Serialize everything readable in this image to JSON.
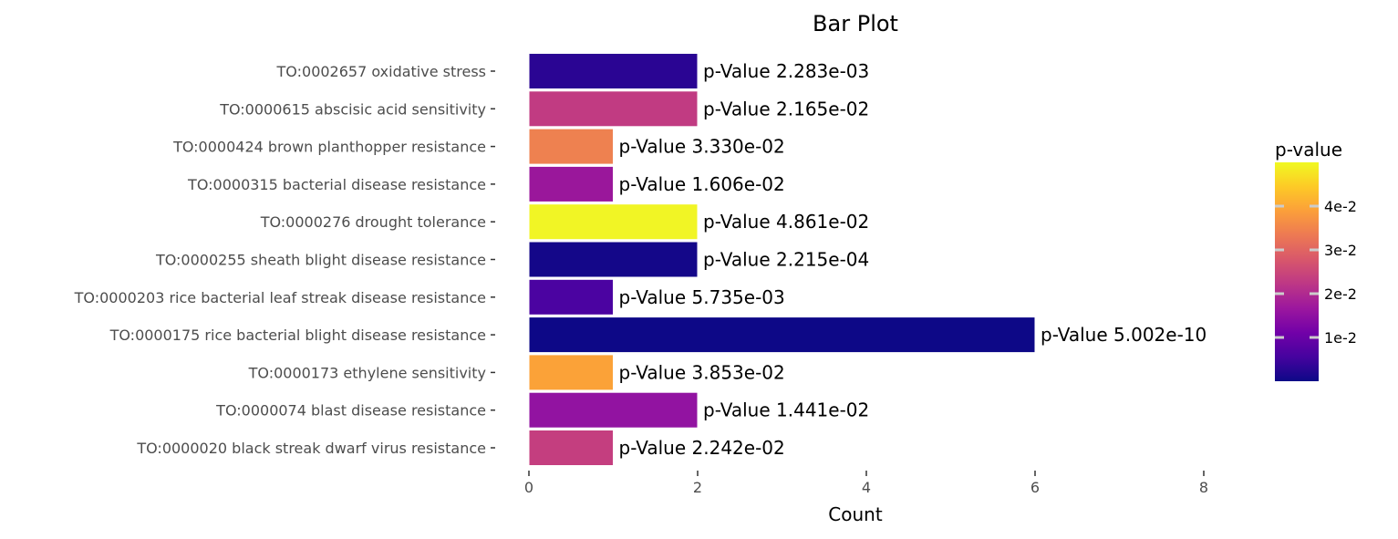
{
  "chart_data": {
    "type": "bar",
    "orientation": "horizontal",
    "title": "Bar Plot",
    "xlabel": "Count",
    "ylabel": "",
    "xlim": [
      0,
      9
    ],
    "x_ticks": [
      0,
      2,
      4,
      6,
      8
    ],
    "grid": false,
    "categories": [
      "TO:0002657 oxidative stress",
      "TO:0000615 abscisic acid sensitivity",
      "TO:0000424 brown planthopper resistance",
      "TO:0000315 bacterial disease resistance",
      "TO:0000276 drought tolerance",
      "TO:0000255 sheath blight disease resistance",
      "TO:0000203 rice bacterial leaf streak disease resistance",
      "TO:0000175 rice bacterial blight disease resistance",
      "TO:0000173 ethylene sensitivity",
      "TO:0000074 blast disease resistance",
      "TO:0000020 black streak dwarf virus resistance"
    ],
    "values": [
      2,
      2,
      1,
      1,
      2,
      2,
      1,
      6,
      1,
      2,
      1
    ],
    "p_values": [
      0.002283,
      0.02165,
      0.0333,
      0.01606,
      0.04861,
      0.0002215,
      0.005735,
      5.002e-10,
      0.03853,
      0.01441,
      0.02242
    ],
    "bar_labels": [
      "p-Value 2.283e-03",
      "p-Value 2.165e-02",
      "p-Value 3.330e-02",
      "p-Value 1.606e-02",
      "p-Value 4.861e-02",
      "p-Value 2.215e-04",
      "p-Value 5.735e-03",
      "p-Value 5.002e-10",
      "p-Value 3.853e-02",
      "p-Value 1.441e-02",
      "p-Value 2.242e-02"
    ],
    "colors": [
      "#2a0593",
      "#c13b82",
      "#ee8150",
      "#9a179b",
      "#f1f525",
      "#140789",
      "#4b03a1",
      "#0d0887",
      "#fba238",
      "#9213a1",
      "#c43e7f"
    ],
    "legend": {
      "title": "p-value",
      "placement": "right",
      "ticks": [
        {
          "value": 0.01,
          "label": "1e-2"
        },
        {
          "value": 0.02,
          "label": "2e-2"
        },
        {
          "value": 0.03,
          "label": "3e-2"
        },
        {
          "value": 0.04,
          "label": "4e-2"
        }
      ],
      "range": [
        0,
        0.05
      ],
      "colormap": "plasma",
      "gradient_stops": [
        "#0d0887",
        "#46039f",
        "#7201a8",
        "#9c179e",
        "#bd3786",
        "#d8576b",
        "#ed7953",
        "#fb9f3a",
        "#fdca26",
        "#f0f921"
      ]
    }
  }
}
